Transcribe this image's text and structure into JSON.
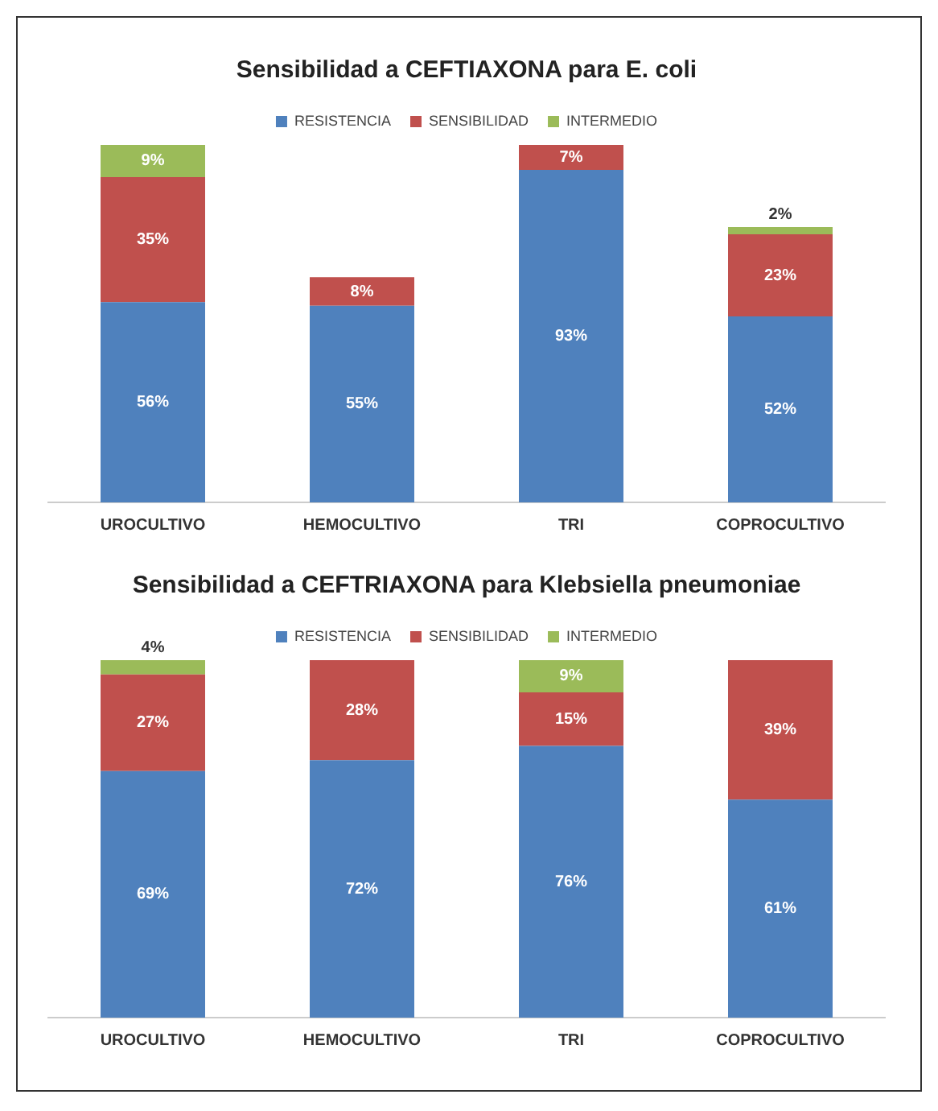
{
  "chart_data": [
    {
      "type": "bar",
      "title": "Sensibilidad a CEFTIAXONA para E. coli",
      "categories": [
        "UROCULTIVO",
        "HEMOCULTIVO",
        "TRI",
        "COPROCULTIVO"
      ],
      "stacked": true,
      "tick_labels": "x",
      "legend": "top",
      "series": [
        {
          "name": "RESISTENCIA",
          "color": "#4f81bd",
          "values": [
            56,
            55,
            93,
            52
          ],
          "value_labels": [
            "56%",
            "55%",
            "93%",
            "52%"
          ]
        },
        {
          "name": "SENSIBILIDAD",
          "color": "#c0504d",
          "values": [
            35,
            8,
            7,
            23
          ],
          "value_labels": [
            "35%",
            "8%",
            "7%",
            "23%"
          ]
        },
        {
          "name": "INTERMEDIO",
          "color": "#9bbb59",
          "values": [
            9,
            null,
            null,
            2
          ],
          "value_labels": [
            "9%",
            null,
            null,
            "2%"
          ]
        }
      ]
    },
    {
      "type": "bar",
      "title": "Sensibilidad a CEFTRIAXONA para Klebsiella pneumoniae",
      "categories": [
        "UROCULTIVO",
        "HEMOCULTIVO",
        "TRI",
        "COPROCULTIVO"
      ],
      "stacked": true,
      "tick_labels": "x",
      "legend": "top",
      "series": [
        {
          "name": "RESISTENCIA",
          "color": "#4f81bd",
          "values": [
            69,
            72,
            76,
            61
          ],
          "value_labels": [
            "69%",
            "72%",
            "76%",
            "61%"
          ]
        },
        {
          "name": "SENSIBILIDAD",
          "color": "#c0504d",
          "values": [
            27,
            28,
            15,
            39
          ],
          "value_labels": [
            "27%",
            "28%",
            "15%",
            "39%"
          ]
        },
        {
          "name": "INTERMEDIO",
          "color": "#9bbb59",
          "values": [
            4,
            null,
            9,
            null
          ],
          "value_labels": [
            "4%",
            null,
            "9%",
            null
          ]
        }
      ]
    }
  ]
}
